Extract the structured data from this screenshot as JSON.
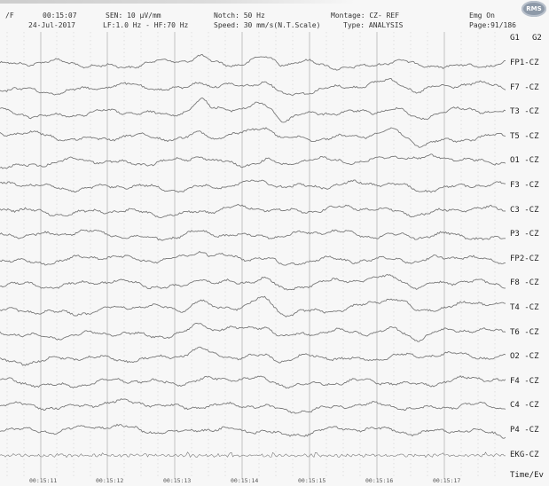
{
  "header": {
    "file_prefix": "/F",
    "time": "00:15:07",
    "date": "24-Jul-2017",
    "sensitivity": "SEN: 10 µV/mm",
    "filters": "LF:1.0 Hz - HF:70 Hz",
    "notch": "Notch: 50 Hz",
    "speed": "Speed: 30 mm/s(N.T.Scale)",
    "montage": "Montage: CZ- REF",
    "type": "Type: ANALYSIS",
    "emg": "Emg On",
    "page": "Page:91/186",
    "logo_text": "RMS"
  },
  "columns": {
    "g1": "G1",
    "g2": "G2"
  },
  "channels": [
    "FP1-CZ",
    "F7 -CZ",
    "T3 -CZ",
    "T5 -CZ",
    "O1 -CZ",
    "F3 -CZ",
    "C3 -CZ",
    "P3 -CZ",
    "FP2-CZ",
    "F8 -CZ",
    "T4 -CZ",
    "T6 -CZ",
    "O2 -CZ",
    "F4 -CZ",
    "C4 -CZ",
    "P4 -CZ",
    "EKG-CZ"
  ],
  "footer_label": "Time/Ev",
  "time_marks": [
    "00:15:11",
    "00:15:12",
    "00:15:13",
    "00:15:14",
    "00:15:15",
    "00:15:16",
    "00:15:17"
  ],
  "trace_color": "#7a7a7a"
}
